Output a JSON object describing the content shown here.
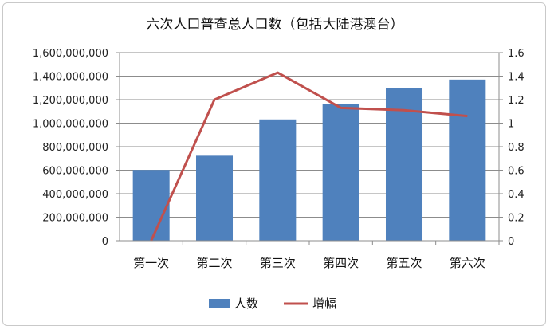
{
  "chart_data": {
    "type": "bar",
    "title": "六次人口普查总人口数（包括大陆港澳台）",
    "categories": [
      "第一次",
      "第二次",
      "第三次",
      "第四次",
      "第五次",
      "第六次"
    ],
    "series": [
      {
        "name": "人数",
        "type": "bar",
        "axis": "left",
        "color": "#4f81bd",
        "values": [
          601938035,
          723070269,
          1031882511,
          1160017381,
          1295330000,
          1370536875
        ]
      },
      {
        "name": "增幅",
        "type": "line",
        "axis": "right",
        "color": "#c0504d",
        "values": [
          0,
          1.2,
          1.43,
          1.13,
          1.11,
          1.06
        ]
      }
    ],
    "y_left": {
      "range": [
        0,
        1600000000
      ],
      "ticks": [
        "0",
        "200,000,000",
        "400,000,000",
        "600,000,000",
        "800,000,000",
        "1,000,000,000",
        "1,200,000,000",
        "1,400,000,000",
        "1,600,000,000"
      ]
    },
    "y_right": {
      "range": [
        0,
        1.6
      ],
      "ticks": [
        "0",
        "0.2",
        "0.4",
        "0.6",
        "0.8",
        "1",
        "1.2",
        "1.4",
        "1.6"
      ]
    },
    "grid": true,
    "legend": "bottom",
    "legend_items": [
      "人数",
      "增幅"
    ]
  }
}
